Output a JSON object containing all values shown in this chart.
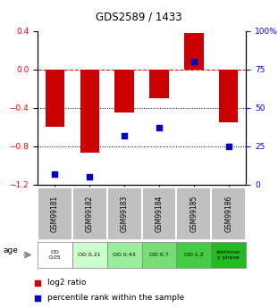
{
  "title": "GDS2589 / 1433",
  "samples": [
    "GSM99181",
    "GSM99182",
    "GSM99183",
    "GSM99184",
    "GSM99185",
    "GSM99186"
  ],
  "log2_ratio": [
    -0.6,
    -0.87,
    -0.45,
    -0.3,
    0.38,
    -0.55
  ],
  "percentile_rank": [
    7,
    5,
    32,
    37,
    80,
    25
  ],
  "bar_color": "#cc0000",
  "dot_color": "#0000cc",
  "ylim_left": [
    -1.2,
    0.4
  ],
  "ylim_right": [
    0,
    100
  ],
  "yticks_left": [
    0.4,
    0.0,
    -0.4,
    -0.8,
    -1.2
  ],
  "yticks_right": [
    100,
    75,
    50,
    25,
    0
  ],
  "age_labels": [
    "OD\n0.05",
    "OD 0.21",
    "OD 0.43",
    "OD 0.7",
    "OD 1.2",
    "stationar\ny phase"
  ],
  "age_colors": [
    "#ffffff",
    "#ccffcc",
    "#99ee99",
    "#77dd77",
    "#44cc44",
    "#22bb22"
  ],
  "header_color": "#c0c0c0",
  "legend_bar_label": "log2 ratio",
  "legend_dot_label": "percentile rank within the sample",
  "age_row_label": "age"
}
